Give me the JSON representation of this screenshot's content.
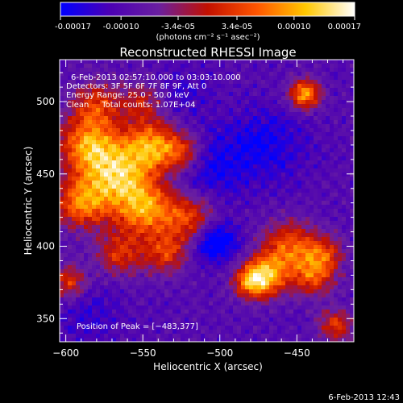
{
  "colorbar": {
    "tick_labels": [
      "-0.00017",
      "-0.00010",
      "-3.4e-05",
      "3.4e-05",
      "0.00010",
      "0.00017"
    ],
    "units_label": "(photons cm⁻² s⁻¹ asec⁻²)",
    "range": [
      -0.00017,
      0.00017
    ],
    "colors": [
      "#0000ff",
      "#4b00b4",
      "#6a1fa0",
      "#c21000",
      "#ff5500",
      "#ffc800",
      "#ffffff"
    ]
  },
  "chart_data": {
    "type": "heatmap",
    "title": "Reconstructed RHESSI Image",
    "xlabel": "Heliocentric X (arcsec)",
    "ylabel": "Heliocentric Y (arcsec)",
    "xlim": [
      -604,
      -413
    ],
    "ylim": [
      334,
      529
    ],
    "x_ticks": [
      -600,
      -550,
      -500,
      -450
    ],
    "y_ticks": [
      350,
      400,
      450,
      500
    ],
    "x_tick_labels": [
      "−600",
      "−550",
      "−500",
      "−450"
    ],
    "y_tick_labels": [
      "350",
      "400",
      "450",
      "500"
    ],
    "peak_position": [
      -483,
      377
    ],
    "info_lines": [
      "6-Feb-2013 02:57:10.000 to 03:03:10.000",
      "Detectors: 3F 5F 6F 7F 8F 9F, Att 0",
      "Energy Range: 25.0 - 50.0 keV",
      "Clean     Total counts: 1.07E+04"
    ],
    "peak_label": "Position of Peak = [−483,377]",
    "blobs": [
      {
        "x": -585,
        "y": 470,
        "w": 2.0,
        "s": 14
      },
      {
        "x": -565,
        "y": 448,
        "w": 2.2,
        "s": 16
      },
      {
        "x": -590,
        "y": 430,
        "w": 1.8,
        "s": 12
      },
      {
        "x": -545,
        "y": 470,
        "w": 1.8,
        "s": 12
      },
      {
        "x": -525,
        "y": 465,
        "w": 1.5,
        "s": 10
      },
      {
        "x": -548,
        "y": 425,
        "w": 1.8,
        "s": 13
      },
      {
        "x": -520,
        "y": 420,
        "w": 1.5,
        "s": 12
      },
      {
        "x": -565,
        "y": 395,
        "w": 1.3,
        "s": 11
      },
      {
        "x": -535,
        "y": 395,
        "w": 1.3,
        "s": 10
      },
      {
        "x": -580,
        "y": 498,
        "w": 1.3,
        "s": 11
      },
      {
        "x": -550,
        "y": 500,
        "w": 1.0,
        "s": 10
      },
      {
        "x": -598,
        "y": 375,
        "w": 1.4,
        "s": 8
      },
      {
        "x": -455,
        "y": 400,
        "w": 1.6,
        "s": 12
      },
      {
        "x": -470,
        "y": 380,
        "w": 2.0,
        "s": 10
      },
      {
        "x": -480,
        "y": 375,
        "w": 1.6,
        "s": 8
      },
      {
        "x": -440,
        "y": 380,
        "w": 1.5,
        "s": 10
      },
      {
        "x": -432,
        "y": 395,
        "w": 1.2,
        "s": 9
      },
      {
        "x": -425,
        "y": 345,
        "w": 1.3,
        "s": 8
      },
      {
        "x": -445,
        "y": 505,
        "w": 2.2,
        "s": 7
      },
      {
        "x": -503,
        "y": 403,
        "w": -1.3,
        "s": 10
      },
      {
        "x": -510,
        "y": 455,
        "w": -0.7,
        "s": 18
      },
      {
        "x": -585,
        "y": 355,
        "w": -0.4,
        "s": 15
      },
      {
        "x": -470,
        "y": 470,
        "w": -0.7,
        "s": 18
      },
      {
        "x": -525,
        "y": 505,
        "w": -0.4,
        "s": 12
      }
    ]
  },
  "footer": {
    "timestamp": "6-Feb-2013 12:43"
  }
}
